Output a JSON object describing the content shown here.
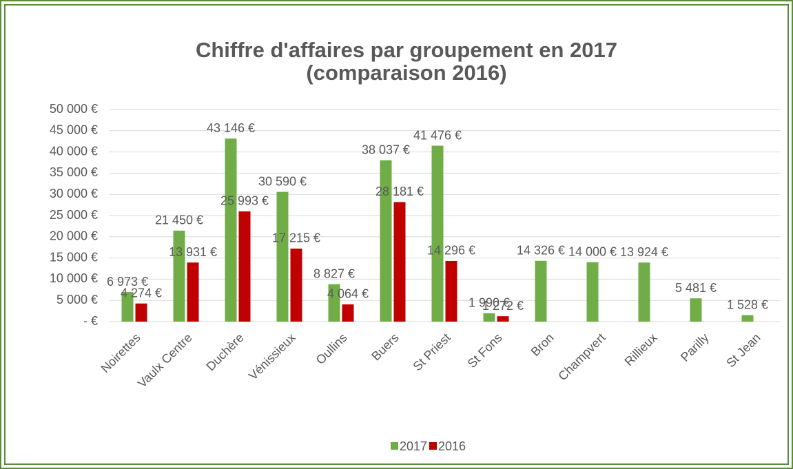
{
  "chart_data": {
    "type": "bar",
    "title": [
      "Chiffre d'affaires par groupement en 2017",
      "(comparaison 2016)"
    ],
    "categories": [
      "Noirettes",
      "Vaulx Centre",
      "Duchère",
      "Vénissieux",
      "Oullins",
      "Buers",
      "St Priest",
      "St Fons",
      "Bron",
      "Champvert",
      "Rillieux",
      "Parilly",
      "St Jean"
    ],
    "series": [
      {
        "name": "2017",
        "color": "#70ad47",
        "values": [
          6973,
          21450,
          43146,
          30590,
          8827,
          38037,
          41476,
          1990,
          14326,
          14000,
          13924,
          5481,
          1528
        ],
        "value_labels": [
          "6 973 €",
          "21 450 €",
          "43 146 €",
          "30 590 €",
          "8 827 €",
          "38 037 €",
          "41 476 €",
          "1 990 €",
          "14 326 €",
          "14 000 €",
          "13 924 €",
          "5 481 €",
          "1 528 €"
        ]
      },
      {
        "name": "2016",
        "color": "#c00000",
        "values": [
          4274,
          13931,
          25993,
          17215,
          4064,
          28181,
          14296,
          1272,
          null,
          null,
          null,
          null,
          null
        ],
        "value_labels": [
          "4 274 €",
          "13 931 €",
          "25 993 €",
          "17 215 €",
          "4 064 €",
          "28 181 €",
          "14 296 €",
          "1 272 €",
          null,
          null,
          null,
          null,
          null
        ]
      }
    ],
    "ylim": [
      0,
      50000
    ],
    "yticks": [
      {
        "value": 0,
        "label": "-   €"
      },
      {
        "value": 5000,
        "label": "5 000 €"
      },
      {
        "value": 10000,
        "label": "10 000 €"
      },
      {
        "value": 15000,
        "label": "15 000 €"
      },
      {
        "value": 20000,
        "label": "20 000 €"
      },
      {
        "value": 25000,
        "label": "25 000 €"
      },
      {
        "value": 30000,
        "label": "30 000 €"
      },
      {
        "value": 35000,
        "label": "35 000 €"
      },
      {
        "value": 40000,
        "label": "40 000 €"
      },
      {
        "value": 45000,
        "label": "45 000 €"
      },
      {
        "value": 50000,
        "label": "50 000 €"
      }
    ],
    "grid": true,
    "legend": "bottom"
  }
}
